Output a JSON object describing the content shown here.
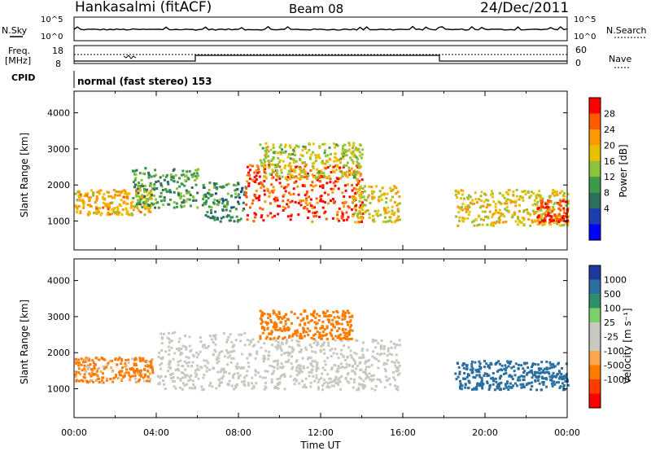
{
  "header": {
    "station": "Hankasalmi (fitACF)",
    "beam": "Beam 08",
    "date": "24/Dec/2011"
  },
  "params": {
    "nsky_label": "N.Sky",
    "nsearch_label": "N.Search",
    "freq_label_1": "Freq.",
    "freq_label_2": "[MHz]",
    "nave_label": "Nave",
    "cpid_label": "CPID",
    "cpid_value": "normal (fast stereo) 153",
    "noise_ticks_left": [
      "10^5",
      "10^0"
    ],
    "noise_ticks_right": [
      "10^5",
      "10^0"
    ],
    "freq_ticks": [
      "18",
      "8"
    ],
    "nave_ticks": [
      "60",
      "0"
    ]
  },
  "chart_data": [
    {
      "type": "heatmap",
      "panel": "power",
      "ylabel": "Slant Range [km]",
      "xlabel": "",
      "yticks": [
        "1000",
        "2000",
        "3000",
        "4000"
      ],
      "ylim": [
        200,
        4600
      ],
      "colorbar_label": "Power [dB]",
      "colorbar_ticks": [
        "28",
        "24",
        "20",
        "16",
        "12",
        "8",
        "4"
      ],
      "colorbar_colors": [
        "#ff0000",
        "#ff5a00",
        "#ff9800",
        "#e8c000",
        "#8ec23a",
        "#3e9a48",
        "#2f6f5f",
        "#1b3fb0",
        "#0000ff"
      ],
      "regions": [
        {
          "t0": 0.0,
          "t1": 3.8,
          "r0": 1200,
          "r1": 1900,
          "level": 20
        },
        {
          "t0": 2.8,
          "t1": 6.0,
          "r0": 1400,
          "r1": 2500,
          "level": 10
        },
        {
          "t0": 6.2,
          "t1": 8.3,
          "r0": 1000,
          "r1": 2100,
          "level": 8
        },
        {
          "t0": 8.3,
          "t1": 14.0,
          "r0": 1000,
          "r1": 2600,
          "level": 27
        },
        {
          "t0": 9.0,
          "t1": 14.0,
          "r0": 2200,
          "r1": 3200,
          "level": 16
        },
        {
          "t0": 13.5,
          "t1": 15.8,
          "r0": 1000,
          "r1": 2000,
          "level": 18
        },
        {
          "t0": 18.5,
          "t1": 24.0,
          "r0": 900,
          "r1": 1900,
          "level": 18
        },
        {
          "t0": 22.5,
          "t1": 24.0,
          "r0": 1000,
          "r1": 1600,
          "level": 28
        }
      ]
    },
    {
      "type": "heatmap",
      "panel": "velocity",
      "ylabel": "Slant Range [km]",
      "xlabel": "Time UT",
      "xticks": [
        "00:00",
        "04:00",
        "08:00",
        "12:00",
        "16:00",
        "20:00",
        "00:00"
      ],
      "yticks": [
        "1000",
        "2000",
        "3000",
        "4000"
      ],
      "ylim": [
        200,
        4600
      ],
      "colorbar_label": "Velocity [m s⁻¹]",
      "colorbar_ticks": [
        "1000",
        "500",
        "100",
        "25",
        "-25",
        "-100",
        "-500",
        "-1000"
      ],
      "colorbar_colors": [
        "#1f3a9c",
        "#2a6fa0",
        "#2f8f6a",
        "#7cd06a",
        "#c8c8c0",
        "#c8c8c0",
        "#ffa64d",
        "#ff7a00",
        "#ff3c00",
        "#ff0000"
      ],
      "regions": [
        {
          "t0": 0.0,
          "t1": 3.8,
          "r0": 1200,
          "r1": 1900,
          "level": -200
        },
        {
          "t0": 4.0,
          "t1": 8.3,
          "r0": 1000,
          "r1": 2600,
          "level": 0
        },
        {
          "t0": 8.3,
          "t1": 15.8,
          "r0": 1000,
          "r1": 2400,
          "level": 0
        },
        {
          "t0": 9.0,
          "t1": 13.5,
          "r0": 2400,
          "r1": 3200,
          "level": -300
        },
        {
          "t0": 18.5,
          "t1": 24.0,
          "r0": 1000,
          "r1": 1800,
          "level": 300
        }
      ]
    }
  ]
}
